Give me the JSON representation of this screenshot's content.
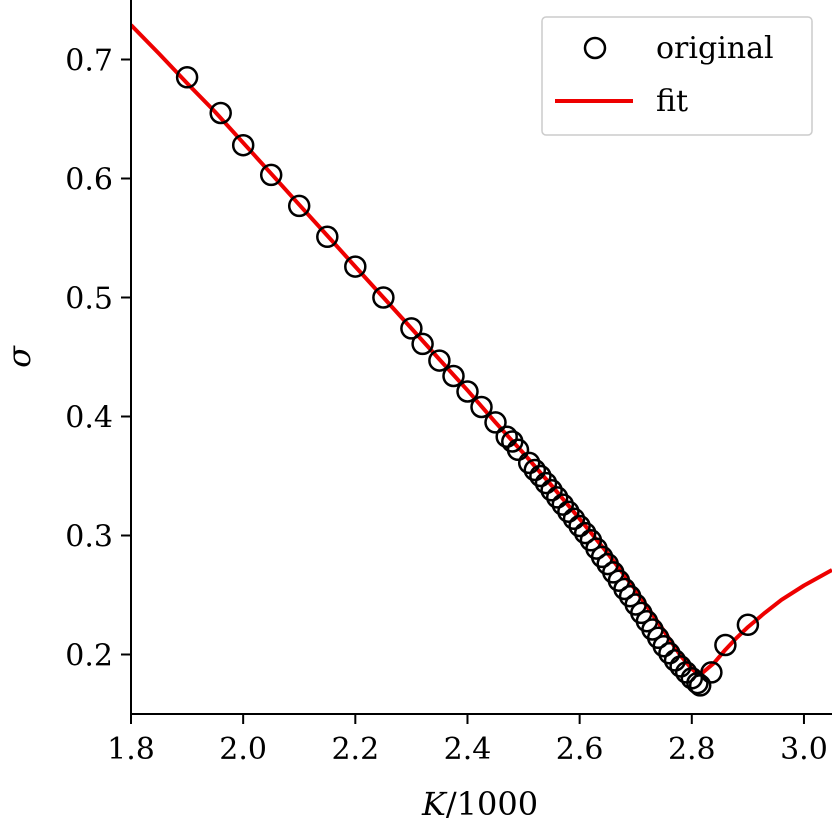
{
  "chart_data": {
    "type": "scatter",
    "title": "",
    "xlabel": "K/1000",
    "ylabel": "σ",
    "xlim": [
      1.8,
      3.05
    ],
    "ylim": [
      0.15,
      0.75
    ],
    "xticks": [
      1.8,
      2.0,
      2.2,
      2.4,
      2.6,
      2.8,
      3.0
    ],
    "xtick_labels": [
      "1.8",
      "2.0",
      "2.2",
      "2.4",
      "2.6",
      "2.8",
      "3.0"
    ],
    "yticks": [
      0.2,
      0.3,
      0.4,
      0.5,
      0.6,
      0.7
    ],
    "ytick_labels": [
      "0.2",
      "0.3",
      "0.4",
      "0.5",
      "0.6",
      "0.7"
    ],
    "grid": false,
    "legend": {
      "placement": "top-right",
      "entries": [
        {
          "label": "original",
          "marker": "open-circle",
          "color": "#000000"
        },
        {
          "label": "fit",
          "marker": "line",
          "color": "#ee0000"
        }
      ]
    },
    "series": [
      {
        "name": "original",
        "style": "open-circle",
        "color": "#000000",
        "x": [
          1.9,
          1.96,
          2.0,
          2.05,
          2.1,
          2.15,
          2.2,
          2.25,
          2.3,
          2.32,
          2.35,
          2.375,
          2.4,
          2.425,
          2.45,
          2.47,
          2.48,
          2.49,
          2.51,
          2.52,
          2.53,
          2.54,
          2.55,
          2.56,
          2.57,
          2.58,
          2.59,
          2.6,
          2.61,
          2.62,
          2.63,
          2.64,
          2.65,
          2.66,
          2.67,
          2.68,
          2.69,
          2.7,
          2.71,
          2.72,
          2.73,
          2.74,
          2.75,
          2.76,
          2.77,
          2.78,
          2.79,
          2.8,
          2.81,
          2.815,
          2.835,
          2.86,
          2.9
        ],
        "y": [
          0.685,
          0.655,
          0.628,
          0.603,
          0.577,
          0.551,
          0.526,
          0.5,
          0.474,
          0.461,
          0.447,
          0.434,
          0.421,
          0.408,
          0.395,
          0.383,
          0.379,
          0.372,
          0.361,
          0.355,
          0.35,
          0.344,
          0.338,
          0.332,
          0.326,
          0.32,
          0.314,
          0.308,
          0.302,
          0.296,
          0.289,
          0.282,
          0.276,
          0.269,
          0.262,
          0.255,
          0.249,
          0.242,
          0.235,
          0.228,
          0.221,
          0.214,
          0.207,
          0.201,
          0.195,
          0.19,
          0.185,
          0.18,
          0.176,
          0.174,
          0.185,
          0.208,
          0.225
        ]
      },
      {
        "name": "fit",
        "style": "line",
        "color": "#ee0000",
        "x": [
          1.8,
          1.85,
          1.9,
          1.95,
          2.0,
          2.05,
          2.1,
          2.15,
          2.2,
          2.25,
          2.3,
          2.35,
          2.4,
          2.45,
          2.5,
          2.55,
          2.6,
          2.65,
          2.7,
          2.75,
          2.78,
          2.8,
          2.81,
          2.82,
          2.84,
          2.86,
          2.88,
          2.9,
          2.93,
          2.96,
          3.0,
          3.05
        ],
        "y": [
          0.729,
          0.705,
          0.68,
          0.656,
          0.63,
          0.604,
          0.578,
          0.552,
          0.526,
          0.5,
          0.474,
          0.448,
          0.422,
          0.395,
          0.369,
          0.342,
          0.314,
          0.285,
          0.254,
          0.22,
          0.199,
          0.188,
          0.184,
          0.185,
          0.193,
          0.204,
          0.214,
          0.223,
          0.235,
          0.246,
          0.258,
          0.271
        ]
      }
    ]
  }
}
